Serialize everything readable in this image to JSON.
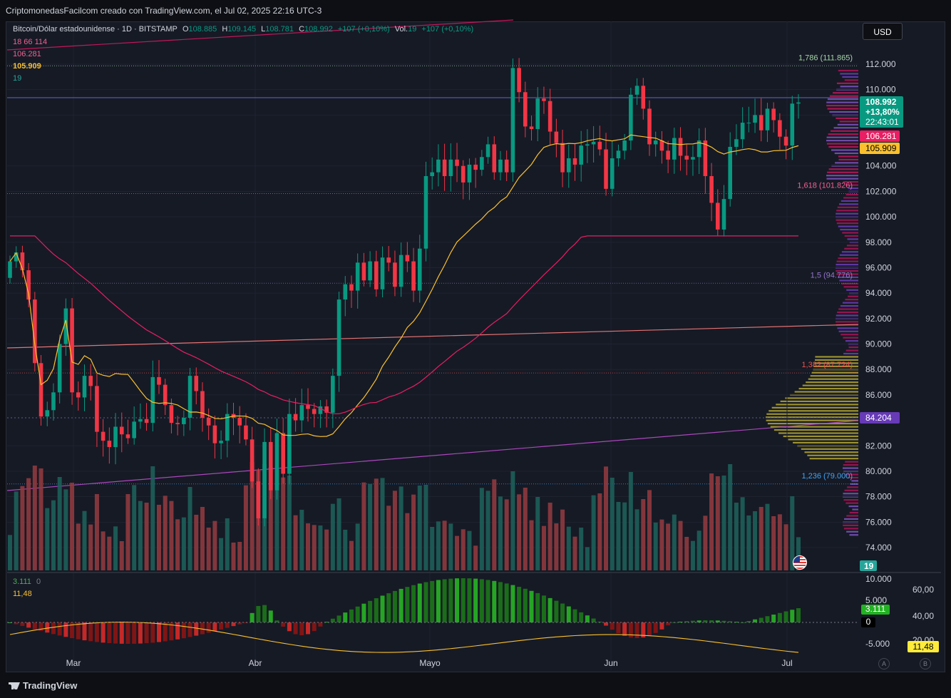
{
  "header": {
    "caption": "CriptomonedasFacilcom creado con TradingView.com, el Jul 02, 2025 22:16 UTC-3"
  },
  "currency_button": "USD",
  "legend": {
    "symbol": "Bitcoin/Dólar estadounidense · 1D · BITSTAMP",
    "o_label": "O",
    "o_value": "108.885",
    "h_label": "H",
    "h_value": "109.145",
    "l_label": "L",
    "l_value": "108.781",
    "c_label": "C",
    "c_value": "108.992",
    "change": "+107 (+0,10%)",
    "vol_label": "Vol.",
    "vol_value": "19",
    "vol_change": "+107 (+0,10%)",
    "line2": "18  66  114",
    "ma_red": "106.281",
    "ma_yellow": "105.909",
    "vol_line": "19"
  },
  "chart_data": {
    "type": "candlestick",
    "x_tick_labels": [
      "Mar",
      "Abr",
      "Mayo",
      "Jun",
      "Jul"
    ],
    "y_ticks": [
      112000,
      110000,
      108000,
      104000,
      102000,
      100000,
      98000,
      96000,
      94000,
      92000,
      90000,
      88000,
      86000,
      82000,
      80000,
      78000,
      76000,
      74000
    ],
    "y_tick_labels": [
      "112.000",
      "110.000",
      "108.000",
      "104.000",
      "102.000",
      "100.000",
      "98.000",
      "96.000",
      "94.000",
      "92.000",
      "90.000",
      "88.000",
      "86.000",
      "82.000",
      "80.000",
      "78.000",
      "76.000",
      "74.000"
    ],
    "ylim": [
      73000,
      113000
    ],
    "candles_close_approx": [
      96500,
      97200,
      95800,
      93500,
      88500,
      84300,
      84800,
      86200,
      90000,
      92800,
      86200,
      85800,
      87500,
      86700,
      83100,
      82400,
      81900,
      83500,
      82900,
      82600,
      83900,
      84100,
      83800,
      87400,
      86800,
      85200,
      83800,
      83700,
      84200,
      87500,
      86300,
      84200,
      83600,
      82200,
      82400,
      84500,
      84200,
      83600,
      82500,
      79200,
      76300,
      82300,
      78500,
      83000,
      79800,
      84500,
      84000,
      85200,
      84900,
      84500,
      85100,
      84600,
      87500,
      93500,
      94700,
      94200,
      96400,
      95000,
      96500,
      94300,
      96800,
      96400,
      94500,
      97000,
      96500,
      94200,
      97500,
      103200,
      103500,
      104500,
      103200,
      104500,
      104000,
      102700,
      104100,
      103700,
      104700,
      105700,
      103500,
      104500,
      103500,
      111700,
      109800,
      107100,
      106900,
      109300,
      109100,
      106700,
      105800,
      103500,
      104600,
      104100,
      105600,
      105700,
      105900,
      105300,
      102200,
      104600,
      105200,
      106000,
      109600,
      110300,
      108500,
      105700,
      106000,
      105200,
      104500,
      106200,
      104800,
      104500,
      104700,
      106000,
      103200,
      101100,
      99000,
      101400,
      105500,
      106100,
      107400,
      107400,
      108000,
      106800,
      108500,
      107600,
      106300,
      105600,
      108900,
      108992
    ],
    "series": [
      {
        "name": "Vol.",
        "last": "19"
      }
    ],
    "ma_last": [
      "106.281",
      "105.909"
    ],
    "fib_levels": [
      {
        "label": "1,786 (111.865)",
        "price": 111865,
        "color": "#a5d6a7"
      },
      {
        "label": "1,618 (101.826)",
        "price": 101826,
        "color": "#f06292"
      },
      {
        "label": "1,5 (94.776)",
        "price": 94776,
        "color": "#9575cd"
      },
      {
        "label": "1,382 (87.724)",
        "price": 87724,
        "color": "#ef5350"
      },
      {
        "label": "1,236 (79.000)",
        "price": 79000,
        "color": "#42a5f5"
      }
    ],
    "price_badges": [
      {
        "text": "108.992",
        "sub1": "+13,80%",
        "sub2": "22:43:01",
        "color": "#089981"
      },
      {
        "text": "106.281",
        "color": "#e91e63"
      },
      {
        "text": "105.909",
        "color": "#fbc02d"
      },
      {
        "text": "84.204",
        "color": "#673ab7"
      },
      {
        "text": "19",
        "color": "#26a69a"
      }
    ],
    "oscillator": {
      "label_a": "3.111",
      "label_a_zero": "0",
      "label_b": "11,48",
      "left_ticks": [
        "10.000",
        "5.000",
        "-5.000"
      ],
      "right_ticks": [
        "60,00",
        "40,00",
        "20,00"
      ],
      "badge_a": "3.111",
      "badge_zero": "0",
      "badge_b": "11,48"
    },
    "grid": true
  },
  "footer": {
    "brand": "TradingView",
    "btn_a": "A",
    "btn_b": "B"
  }
}
